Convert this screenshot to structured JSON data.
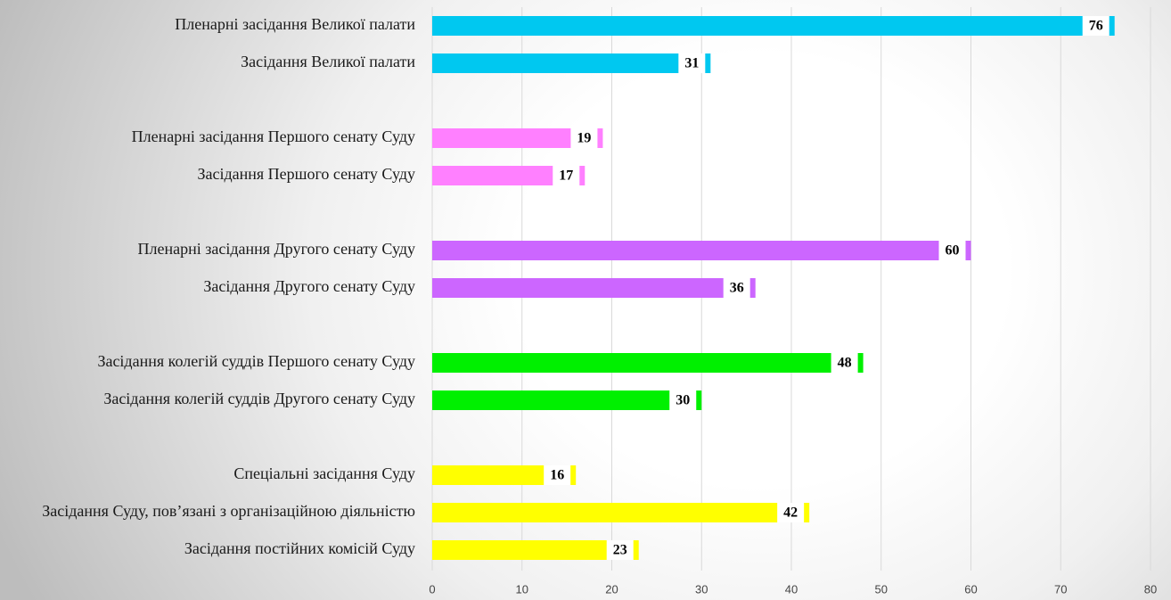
{
  "chart_data": {
    "type": "barh",
    "categories": [
      "Пленарні засідання Великої палати",
      "Засідання Великої палати",
      null,
      "Пленарні засідання Першого сенату Суду",
      "Засідання Першого сенату Суду",
      null,
      "Пленарні засідання Другого сенату Суду",
      "Засідання Другого сенату Суду",
      null,
      "Засідання колегій суддів Першого сенату Суду",
      "Засідання колегій суддів Другого сенату Суду",
      null,
      "Спеціальні засідання Суду",
      "Засідання Суду, пов’язані з організаційною діяльністю",
      "Засідання постійних комісій Суду"
    ],
    "values": [
      76,
      31,
      null,
      19,
      17,
      null,
      60,
      36,
      null,
      48,
      30,
      null,
      16,
      42,
      23
    ],
    "colors": [
      "#00c8f0",
      "#00c8f0",
      null,
      "#ff80ff",
      "#ff80ff",
      null,
      "#cc66ff",
      "#cc66ff",
      null,
      "#00f000",
      "#00f000",
      null,
      "#ffff00",
      "#ffff00",
      "#ffff00"
    ],
    "xlim": [
      0,
      80
    ],
    "xticks": [
      0,
      10,
      20,
      30,
      40,
      50,
      60,
      70,
      80
    ],
    "grid": true
  }
}
